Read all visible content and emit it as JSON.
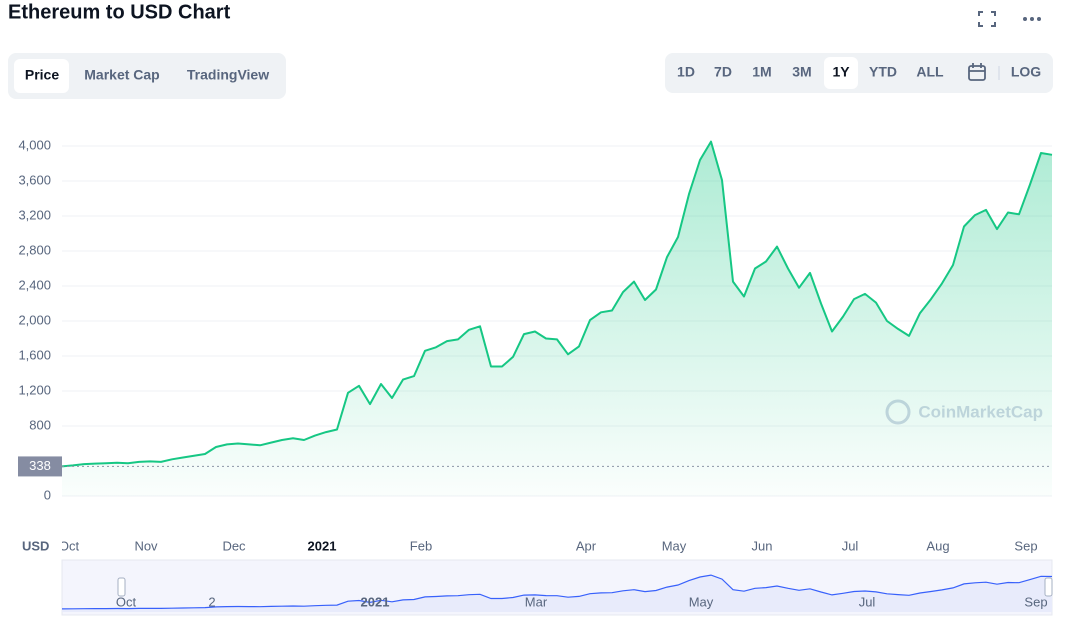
{
  "chart_data": {
    "type": "line",
    "title": "Ethereum to USD Chart",
    "categories": [
      null,
      "Oct",
      null,
      null,
      null,
      null,
      null,
      null,
      "Nov",
      null,
      null,
      null,
      null,
      null,
      null,
      null,
      "Dec",
      null,
      null,
      null,
      null,
      null,
      null,
      null,
      "2021",
      null,
      null,
      null,
      null,
      null,
      null,
      null,
      null,
      "Feb",
      null,
      null,
      null,
      null,
      null,
      null,
      null,
      null,
      null,
      null,
      null,
      null,
      null,
      null,
      "Apr",
      null,
      null,
      null,
      null,
      null,
      null,
      null,
      "May",
      null,
      null,
      null,
      null,
      null,
      null,
      null,
      "Jun",
      null,
      null,
      null,
      null,
      null,
      null,
      null,
      "Jul",
      null,
      null,
      null,
      null,
      null,
      null,
      null,
      "Aug",
      null,
      null,
      null,
      null,
      null,
      null,
      null,
      "Sep",
      null,
      null
    ],
    "series": [
      {
        "name": "Price",
        "color": "#16c784",
        "values": [
          338,
          350,
          365,
          370,
          375,
          380,
          375,
          390,
          395,
          390,
          420,
          440,
          460,
          480,
          560,
          590,
          600,
          590,
          580,
          610,
          640,
          660,
          640,
          690,
          730,
          760,
          1180,
          1260,
          1050,
          1280,
          1120,
          1330,
          1370,
          1660,
          1700,
          1770,
          1790,
          1900,
          1940,
          1480,
          1480,
          1590,
          1850,
          1880,
          1800,
          1790,
          1620,
          1710,
          2010,
          2100,
          2120,
          2330,
          2450,
          2240,
          2360,
          2730,
          2960,
          3450,
          3840,
          4050,
          3610,
          2450,
          2280,
          2600,
          2680,
          2850,
          2600,
          2380,
          2550,
          2200,
          1880,
          2050,
          2250,
          2310,
          2210,
          2000,
          1910,
          1830,
          2090,
          2250,
          2430,
          2640,
          3080,
          3210,
          3270,
          3050,
          3240,
          3220,
          3560,
          3920,
          3900
        ]
      }
    ],
    "ylim": [
      -390,
      4390
    ],
    "yticks": [
      {
        "value": 0,
        "label": "0"
      },
      {
        "value": 800,
        "label": "800"
      },
      {
        "value": 1200,
        "label": "1,200"
      },
      {
        "value": 1600,
        "label": "1,600"
      },
      {
        "value": 2000,
        "label": "2,000"
      },
      {
        "value": 2400,
        "label": "2,400"
      },
      {
        "value": 2800,
        "label": "2,800"
      },
      {
        "value": 3200,
        "label": "3,200"
      },
      {
        "value": 3600,
        "label": "3,600"
      },
      {
        "value": 4000,
        "label": "4,000"
      }
    ],
    "grid": true,
    "price_marker": 338,
    "currency": "USD",
    "watermark": "CoinMarketCap",
    "navigator_labels": [
      "Oct",
      "2",
      "2021",
      "Mar",
      "May",
      "Jul",
      "Sep"
    ]
  },
  "ui": {
    "tabs": [
      "Price",
      "Market Cap",
      "TradingView"
    ],
    "ranges": [
      "1D",
      "7D",
      "1M",
      "3M",
      "1Y",
      "YTD",
      "ALL",
      "LOG"
    ]
  }
}
